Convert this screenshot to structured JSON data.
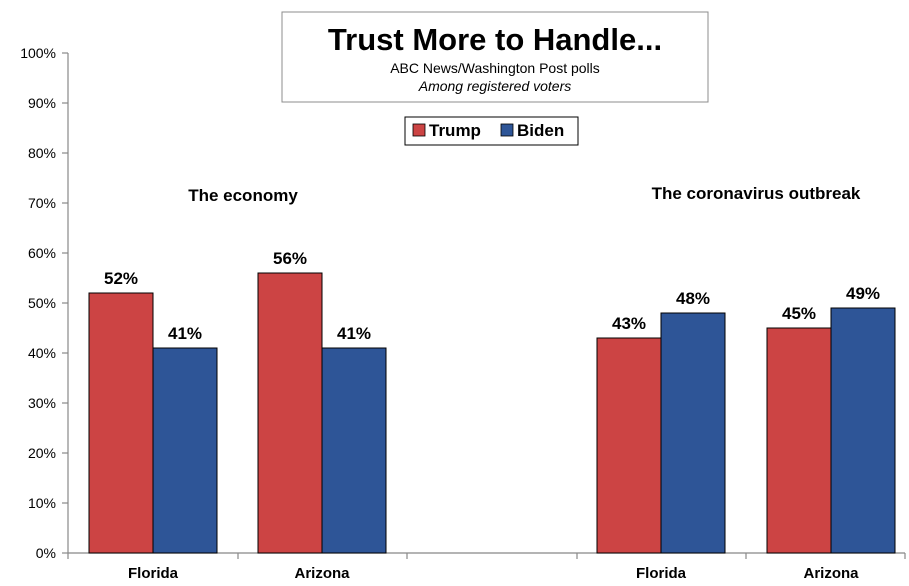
{
  "chart_data": {
    "type": "bar",
    "title": "Trust More to Handle...",
    "subtitle": "ABC News/Washington Post polls",
    "subtitle2": "Among registered voters",
    "legend_position": "top-center",
    "y_ticks": [
      "0%",
      "10%",
      "20%",
      "30%",
      "40%",
      "50%",
      "60%",
      "70%",
      "80%",
      "90%",
      "100%"
    ],
    "ylim": [
      0,
      100
    ],
    "grid": false,
    "series": [
      {
        "name": "Trump",
        "color": "#cc4444"
      },
      {
        "name": "Biden",
        "color": "#2e5597"
      }
    ],
    "groups": [
      {
        "label": "The economy",
        "categories": [
          {
            "label": "Florida",
            "values": [
              52,
              41
            ],
            "labels": [
              "52%",
              "41%"
            ]
          },
          {
            "label": "Arizona",
            "values": [
              56,
              41
            ],
            "labels": [
              "56%",
              "41%"
            ]
          }
        ]
      },
      {
        "label": "The coronavirus outbreak",
        "categories": [
          {
            "label": "Florida",
            "values": [
              43,
              48
            ],
            "labels": [
              "43%",
              "48%"
            ]
          },
          {
            "label": "Arizona",
            "values": [
              45,
              49
            ],
            "labels": [
              "45%",
              "49%"
            ]
          }
        ]
      }
    ]
  }
}
